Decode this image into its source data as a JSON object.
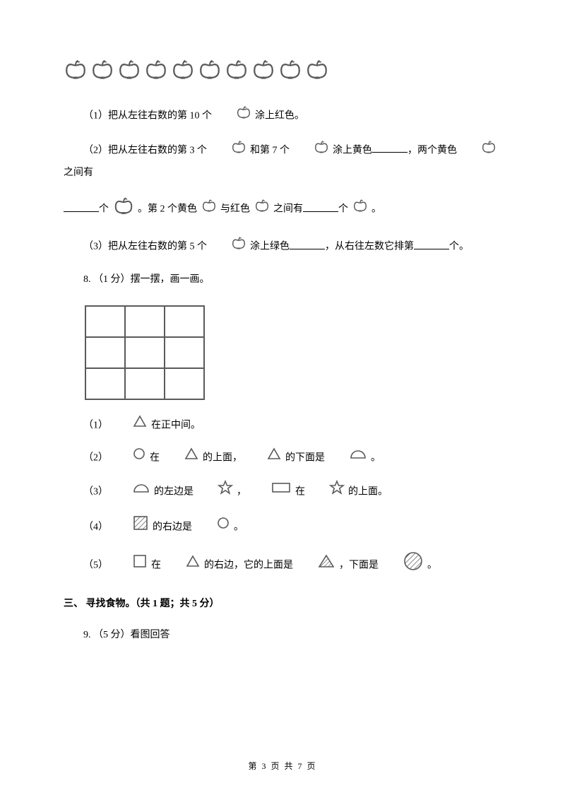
{
  "apple_count": 10,
  "q7": {
    "p1_pre": "（1）把从左往右数的第 10 个",
    "p1_post": "涂上红色。",
    "p2_pre": "（2）把从左往右数的第 3 个",
    "p2_mid1": "和第 7 个",
    "p2_mid2": "涂上黄色",
    "p2_mid3": "，两个黄色",
    "p2_mid4": "之间有",
    "p2_b_pre": "个",
    "p2_b_mid1": "。第 2 个黄色",
    "p2_b_mid2": "与红色",
    "p2_b_mid3": "之间有",
    "p2_b_mid4": "个",
    "p2_b_post": "。",
    "p3_pre": "（3）把从左往右数的第 5 个",
    "p3_mid1": "涂上绿色",
    "p3_mid2": "，从右往左数它排第",
    "p3_post": "个。"
  },
  "q8": {
    "header": "8. （1 分）摆一摆，画一画。",
    "l1a": "（1）",
    "l1b": "在正中间。",
    "l2a": "（2）",
    "l2b": "在",
    "l2c": "的上面，",
    "l2d": "的下面是",
    "l2e": "。",
    "l3a": "（3）",
    "l3b": "的左边是",
    "l3c": "，",
    "l3d": "在",
    "l3e": "的上面。",
    "l4a": "（4）",
    "l4b": "的右边是",
    "l4c": "。",
    "l5a": "（5）",
    "l5b": "在",
    "l5c": "的右边，它的上面是",
    "l5d": "，下面是",
    "l5e": "。"
  },
  "section3": "三、 寻找食物。（共 1 题；共 5 分）",
  "q9": "9. （5 分）看图回答",
  "footer": "第 3 页 共 7 页",
  "colors": {
    "stroke": "#5a5a5a",
    "text": "#000000",
    "bg": "#ffffff"
  }
}
